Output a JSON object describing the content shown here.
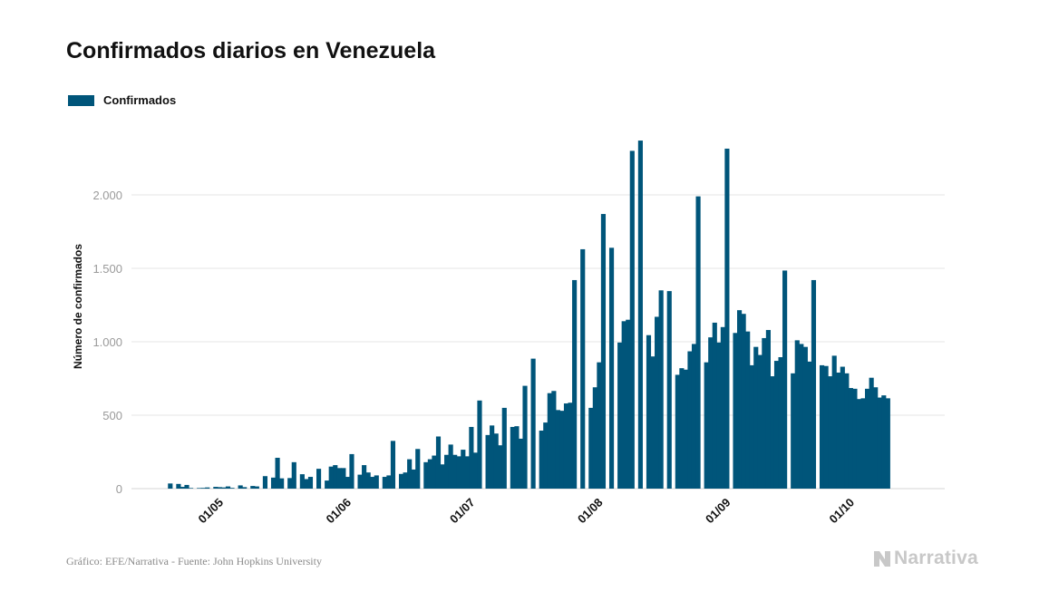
{
  "title": "Confirmados diarios en Venezuela",
  "legend_label": "Confirmados",
  "source": "Gráfico: EFE/Narrativa - Fuente: John Hopkins University",
  "brand": "Narrativa",
  "colors": {
    "bar": "#00557a",
    "grid": "#e6e6e6",
    "tick": "#9a9a9a",
    "text": "#111111"
  },
  "chart_data": {
    "type": "bar",
    "title": "Confirmados diarios en Venezuela",
    "xlabel": "",
    "ylabel": "Número de confirmados",
    "ylim": [
      0,
      2500
    ],
    "yticks": [
      0,
      500,
      1000,
      1500,
      2000
    ],
    "ytick_labels": [
      "0",
      "500",
      "1.000",
      "1.500",
      "2.000"
    ],
    "xtick_labels": [
      "01/05",
      "01/06",
      "01/07",
      "01/08",
      "01/09",
      "01/10"
    ],
    "grid": true,
    "legend": "top-left",
    "series": [
      {
        "name": "Confirmados",
        "start_date": "2020-04-20",
        "values": [
          0,
          35,
          0,
          32,
          12,
          25,
          4,
          0,
          4,
          5,
          8,
          0,
          12,
          10,
          8,
          15,
          5,
          0,
          22,
          10,
          0,
          18,
          15,
          0,
          85,
          0,
          75,
          210,
          70,
          0,
          72,
          180,
          0,
          98,
          65,
          80,
          0,
          135,
          0,
          55,
          150,
          160,
          140,
          140,
          80,
          235,
          0,
          95,
          160,
          110,
          80,
          90,
          0,
          80,
          90,
          325,
          0,
          100,
          110,
          200,
          130,
          270,
          0,
          180,
          200,
          225,
          355,
          165,
          230,
          300,
          230,
          220,
          265,
          220,
          420,
          245,
          600,
          0,
          365,
          430,
          375,
          295,
          550,
          0,
          420,
          425,
          340,
          700,
          0,
          885,
          0,
          395,
          450,
          650,
          665,
          535,
          530,
          580,
          585,
          1420,
          0,
          1630,
          0,
          550,
          690,
          860,
          1870,
          0,
          1640,
          0,
          995,
          1140,
          1150,
          2300,
          0,
          2370,
          0,
          1045,
          900,
          1170,
          1350,
          0,
          1345,
          0,
          775,
          820,
          810,
          935,
          985,
          1990,
          0,
          860,
          1030,
          1130,
          995,
          1100,
          2315,
          0,
          1060,
          1215,
          1190,
          1070,
          840,
          965,
          910,
          1025,
          1080,
          765,
          870,
          895,
          1485,
          0,
          785,
          1010,
          985,
          965,
          865,
          1420,
          0,
          840,
          835,
          765,
          905,
          790,
          830,
          785,
          685,
          680,
          610,
          615,
          680,
          755,
          690,
          620,
          635,
          615
        ]
      }
    ]
  }
}
